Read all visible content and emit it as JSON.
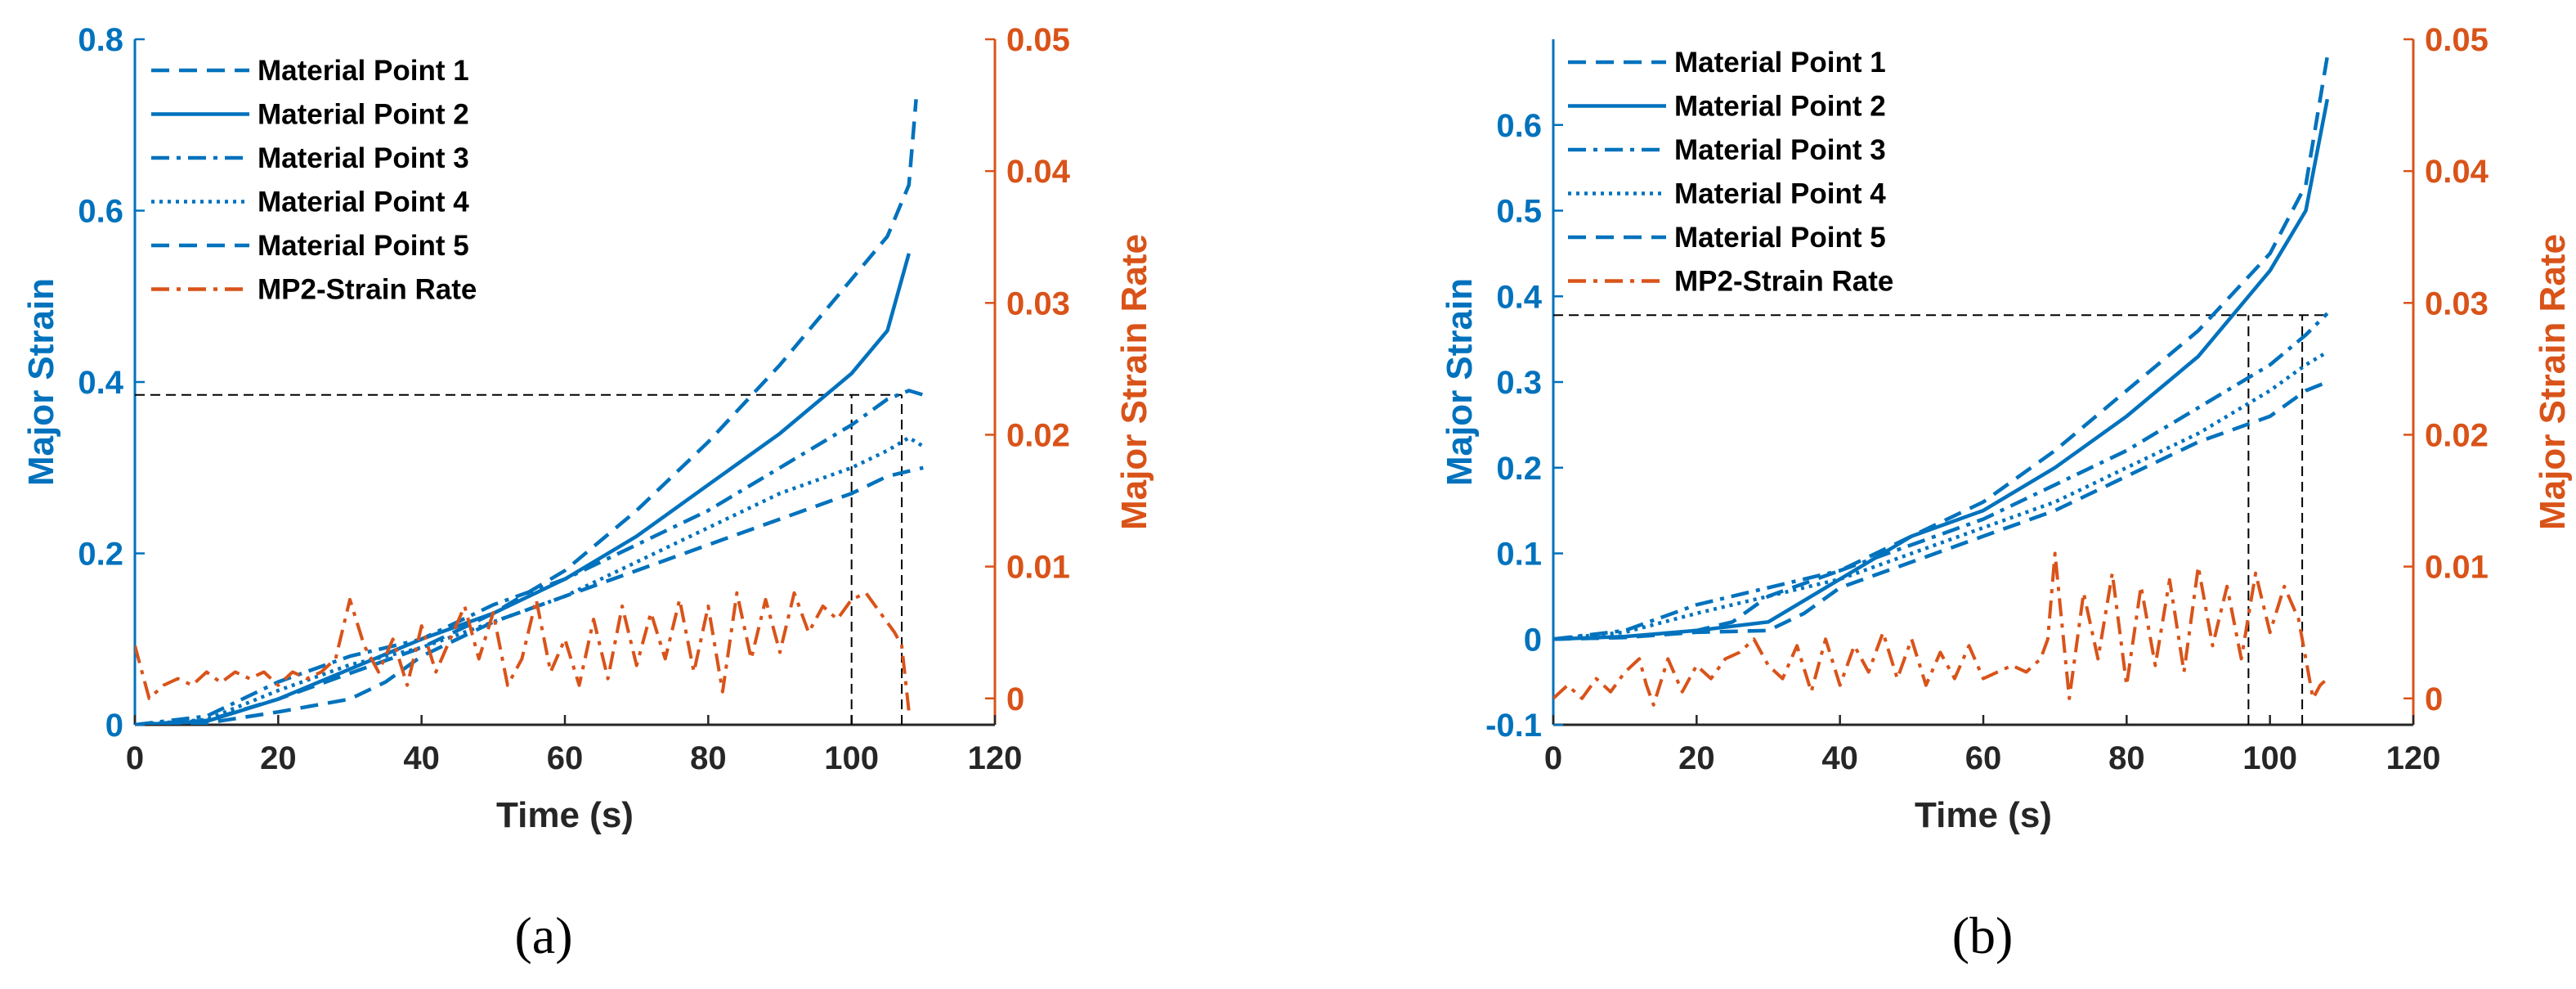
{
  "chart_data": [
    {
      "panel_label": "(a)",
      "type": "line",
      "xlabel": "Time (s)",
      "ylabel": "Major Strain",
      "y2label": "Major Strain Rate",
      "xlim": [
        0,
        120
      ],
      "ylim": [
        0,
        0.8
      ],
      "y2lim": [
        -0.002,
        0.05
      ],
      "xticks": [
        "0",
        "20",
        "40",
        "60",
        "80",
        "100",
        "120"
      ],
      "yticks": [
        "0",
        "0.2",
        "0.4",
        "0.6",
        "0.8"
      ],
      "y2ticks": [
        "0",
        "0.01",
        "0.02",
        "0.03",
        "0.04",
        "0.05"
      ],
      "legend_position": "top-left",
      "colors": {
        "left_axis": "#0072BD",
        "right_axis": "#D95319",
        "guides": "#000000"
      },
      "series": [
        {
          "name": "Material Point 1",
          "axis": "left",
          "style": "dashed",
          "x": [
            0,
            10,
            20,
            30,
            40,
            50,
            60,
            70,
            80,
            90,
            100,
            105,
            108,
            109
          ],
          "y": [
            0,
            0.005,
            0.03,
            0.06,
            0.09,
            0.13,
            0.18,
            0.25,
            0.33,
            0.42,
            0.52,
            0.57,
            0.63,
            0.73
          ]
        },
        {
          "name": "Material Point 2",
          "axis": "left",
          "style": "solid",
          "x": [
            0,
            10,
            20,
            30,
            40,
            50,
            60,
            70,
            80,
            90,
            100,
            105,
            108
          ],
          "y": [
            0,
            0.004,
            0.03,
            0.065,
            0.1,
            0.13,
            0.17,
            0.22,
            0.28,
            0.34,
            0.41,
            0.46,
            0.55
          ]
        },
        {
          "name": "Material Point 3",
          "axis": "left",
          "style": "dashdot",
          "x": [
            0,
            10,
            20,
            30,
            40,
            50,
            60,
            70,
            80,
            90,
            100,
            105,
            108,
            110
          ],
          "y": [
            0,
            0.01,
            0.05,
            0.08,
            0.1,
            0.14,
            0.17,
            0.21,
            0.25,
            0.3,
            0.35,
            0.38,
            0.39,
            0.385
          ]
        },
        {
          "name": "Material Point 4",
          "axis": "left",
          "style": "dotted",
          "x": [
            0,
            10,
            20,
            30,
            40,
            50,
            60,
            70,
            80,
            90,
            100,
            105,
            108,
            110
          ],
          "y": [
            0,
            0.006,
            0.04,
            0.07,
            0.09,
            0.12,
            0.15,
            0.19,
            0.23,
            0.27,
            0.3,
            0.32,
            0.335,
            0.325
          ]
        },
        {
          "name": "Material Point 5",
          "axis": "left",
          "style": "dashed",
          "x": [
            0,
            10,
            20,
            30,
            35,
            40,
            50,
            60,
            70,
            80,
            90,
            100,
            105,
            110
          ],
          "y": [
            0,
            0.002,
            0.015,
            0.03,
            0.05,
            0.08,
            0.12,
            0.15,
            0.18,
            0.21,
            0.24,
            0.27,
            0.29,
            0.3
          ]
        },
        {
          "name": "MP2-Strain Rate",
          "axis": "right",
          "style": "dashdot",
          "x": [
            0,
            2,
            4,
            6,
            8,
            10,
            12,
            14,
            16,
            18,
            20,
            22,
            24,
            26,
            28,
            30,
            32,
            34,
            36,
            38,
            40,
            42,
            44,
            46,
            48,
            50,
            52,
            54,
            56,
            58,
            60,
            62,
            64,
            66,
            68,
            70,
            72,
            74,
            76,
            78,
            80,
            82,
            84,
            86,
            88,
            90,
            92,
            94,
            96,
            98,
            100,
            102,
            104,
            106,
            107,
            108
          ],
          "y": [
            0.004,
            0.0,
            0.001,
            0.0015,
            0.001,
            0.002,
            0.0012,
            0.002,
            0.0015,
            0.002,
            0.001,
            0.002,
            0.0015,
            0.002,
            0.003,
            0.0075,
            0.004,
            0.002,
            0.0045,
            0.001,
            0.0055,
            0.002,
            0.0045,
            0.007,
            0.003,
            0.0065,
            0.001,
            0.003,
            0.0075,
            0.002,
            0.0045,
            0.001,
            0.006,
            0.0015,
            0.007,
            0.0025,
            0.0065,
            0.003,
            0.0075,
            0.002,
            0.007,
            0.0005,
            0.008,
            0.003,
            0.0075,
            0.0035,
            0.008,
            0.005,
            0.007,
            0.006,
            0.0075,
            0.008,
            0.0065,
            0.005,
            0.004,
            -0.001
          ]
        }
      ],
      "guides": [
        {
          "kind": "h",
          "y_left": 0.385,
          "x_from": 0,
          "x_to": 107
        },
        {
          "kind": "v",
          "x": 100,
          "y_from": 0,
          "y_to": 0.385
        },
        {
          "kind": "v",
          "x": 107,
          "y_from": 0,
          "y_to": 0.385
        }
      ]
    },
    {
      "panel_label": "(b)",
      "type": "line",
      "xlabel": "Time (s)",
      "ylabel": "Major Strain",
      "y2label": "Major Strain Rate",
      "xlim": [
        0,
        120
      ],
      "ylim": [
        -0.1,
        0.7
      ],
      "y2lim": [
        -0.002,
        0.05
      ],
      "xticks": [
        "0",
        "20",
        "40",
        "60",
        "80",
        "100",
        "120"
      ],
      "yticks": [
        "-0.1",
        "0",
        "0.1",
        "0.2",
        "0.3",
        "0.4",
        "0.5",
        "0.6"
      ],
      "y2ticks": [
        "0",
        "0.01",
        "0.02",
        "0.03",
        "0.04",
        "0.05"
      ],
      "legend_position": "top-left",
      "colors": {
        "left_axis": "#0072BD",
        "right_axis": "#D95319",
        "guides": "#000000"
      },
      "series": [
        {
          "name": "Material Point 1",
          "axis": "left",
          "style": "dashed",
          "x": [
            0,
            10,
            20,
            25,
            30,
            40,
            50,
            60,
            70,
            80,
            90,
            100,
            105,
            108
          ],
          "y": [
            0,
            0.002,
            0.01,
            0.02,
            0.05,
            0.08,
            0.12,
            0.16,
            0.22,
            0.29,
            0.36,
            0.45,
            0.53,
            0.68
          ]
        },
        {
          "name": "Material Point 2",
          "axis": "left",
          "style": "solid",
          "x": [
            0,
            10,
            20,
            30,
            40,
            50,
            60,
            70,
            80,
            90,
            100,
            105,
            108
          ],
          "y": [
            0,
            0.003,
            0.01,
            0.02,
            0.07,
            0.12,
            0.15,
            0.2,
            0.26,
            0.33,
            0.43,
            0.5,
            0.63
          ]
        },
        {
          "name": "Material Point 3",
          "axis": "left",
          "style": "dashdot",
          "x": [
            0,
            10,
            20,
            30,
            40,
            50,
            60,
            70,
            80,
            90,
            100,
            105,
            108
          ],
          "y": [
            0,
            0.01,
            0.04,
            0.06,
            0.08,
            0.11,
            0.14,
            0.18,
            0.22,
            0.27,
            0.32,
            0.355,
            0.38
          ]
        },
        {
          "name": "Material Point 4",
          "axis": "left",
          "style": "dotted",
          "x": [
            0,
            10,
            20,
            30,
            40,
            50,
            60,
            70,
            80,
            90,
            100,
            105,
            108
          ],
          "y": [
            0,
            0.008,
            0.03,
            0.05,
            0.07,
            0.1,
            0.13,
            0.16,
            0.2,
            0.24,
            0.29,
            0.32,
            0.335
          ]
        },
        {
          "name": "Material Point 5",
          "axis": "left",
          "style": "dashed",
          "x": [
            0,
            10,
            20,
            30,
            35,
            40,
            50,
            60,
            70,
            80,
            90,
            100,
            105,
            108
          ],
          "y": [
            0,
            0.002,
            0.008,
            0.01,
            0.03,
            0.06,
            0.09,
            0.12,
            0.15,
            0.19,
            0.23,
            0.26,
            0.29,
            0.3
          ]
        }
      ],
      "guides": [
        {
          "kind": "h",
          "y_left": 0.378,
          "x_from": 0,
          "x_to": 108
        },
        {
          "kind": "v",
          "x": 97,
          "y_from": -0.1,
          "y_to": 0.378
        },
        {
          "kind": "v",
          "x": 104.5,
          "y_from": -0.1,
          "y_to": 0.378
        }
      ],
      "rate_series": {
        "name": "MP2-Strain Rate",
        "axis": "right",
        "style": "dashdot",
        "x": [
          0,
          2,
          4,
          6,
          8,
          10,
          12,
          13,
          14,
          16,
          18,
          20,
          22,
          24,
          26,
          28,
          30,
          32,
          34,
          36,
          38,
          40,
          42,
          44,
          46,
          48,
          50,
          52,
          54,
          56,
          58,
          60,
          62,
          64,
          66,
          68,
          69,
          70,
          72,
          74,
          76,
          78,
          80,
          82,
          84,
          86,
          88,
          90,
          92,
          94,
          96,
          98,
          100,
          102,
          104,
          106,
          107,
          108
        ],
        "y": [
          0.0,
          0.001,
          0.0,
          0.0015,
          0.0005,
          0.002,
          0.003,
          0.001,
          -0.0005,
          0.003,
          0.0005,
          0.0025,
          0.0015,
          0.003,
          0.0035,
          0.0045,
          0.0025,
          0.0015,
          0.004,
          0.0005,
          0.0045,
          0.001,
          0.004,
          0.002,
          0.005,
          0.0015,
          0.0045,
          0.001,
          0.0035,
          0.0015,
          0.004,
          0.0015,
          0.002,
          0.0025,
          0.002,
          0.003,
          0.0045,
          0.011,
          0.0,
          0.008,
          0.003,
          0.0095,
          0.001,
          0.0085,
          0.0025,
          0.009,
          0.002,
          0.01,
          0.004,
          0.0085,
          0.003,
          0.0095,
          0.005,
          0.0085,
          0.006,
          0.0,
          0.001,
          0.0015
        ]
      }
    }
  ]
}
